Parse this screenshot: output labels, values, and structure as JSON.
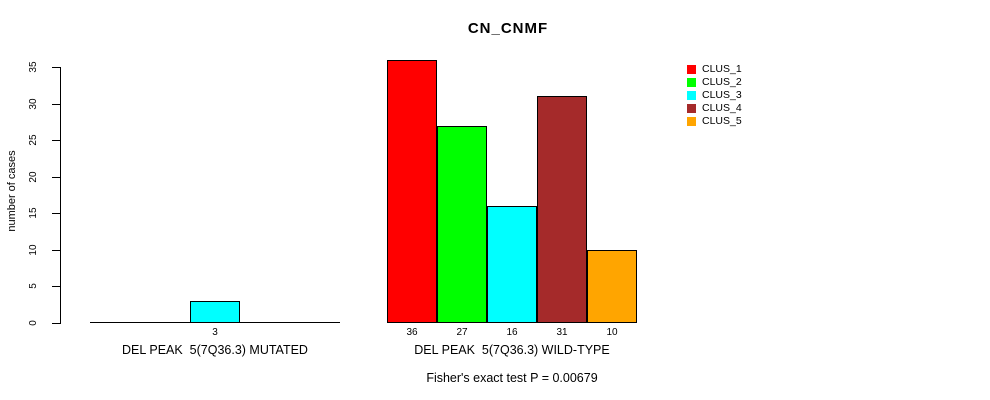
{
  "chart_data": {
    "type": "bar",
    "title": "CN_CNMF",
    "ylabel": "number of cases",
    "ylim": [
      0,
      35
    ],
    "yticks": [
      0,
      5,
      10,
      15,
      20,
      25,
      30,
      35
    ],
    "categories": [
      "DEL PEAK  5(7Q36.3) MUTATED",
      "DEL PEAK  5(7Q36.3) WILD-TYPE"
    ],
    "series": [
      {
        "name": "CLUS_1",
        "color": "#FF0000",
        "values": [
          0,
          36
        ]
      },
      {
        "name": "CLUS_2",
        "color": "#00FF00",
        "values": [
          0,
          27
        ]
      },
      {
        "name": "CLUS_3",
        "color": "#00FFFF",
        "values": [
          3,
          16
        ]
      },
      {
        "name": "CLUS_4",
        "color": "#A52A2A",
        "values": [
          0,
          31
        ]
      },
      {
        "name": "CLUS_5",
        "color": "#FFA500",
        "values": [
          0,
          10
        ]
      }
    ],
    "bar_value_labels": [
      [
        "",
        "",
        "3",
        "",
        ""
      ],
      [
        "36",
        "27",
        "16",
        "31",
        "10"
      ]
    ],
    "legend": {
      "position": "top-right"
    },
    "annotation": "Fisher's exact test P = 0.00679",
    "axis_color": "#000000",
    "bar_border_color": "#000000",
    "background": "#FFFFFF",
    "grid": false
  }
}
